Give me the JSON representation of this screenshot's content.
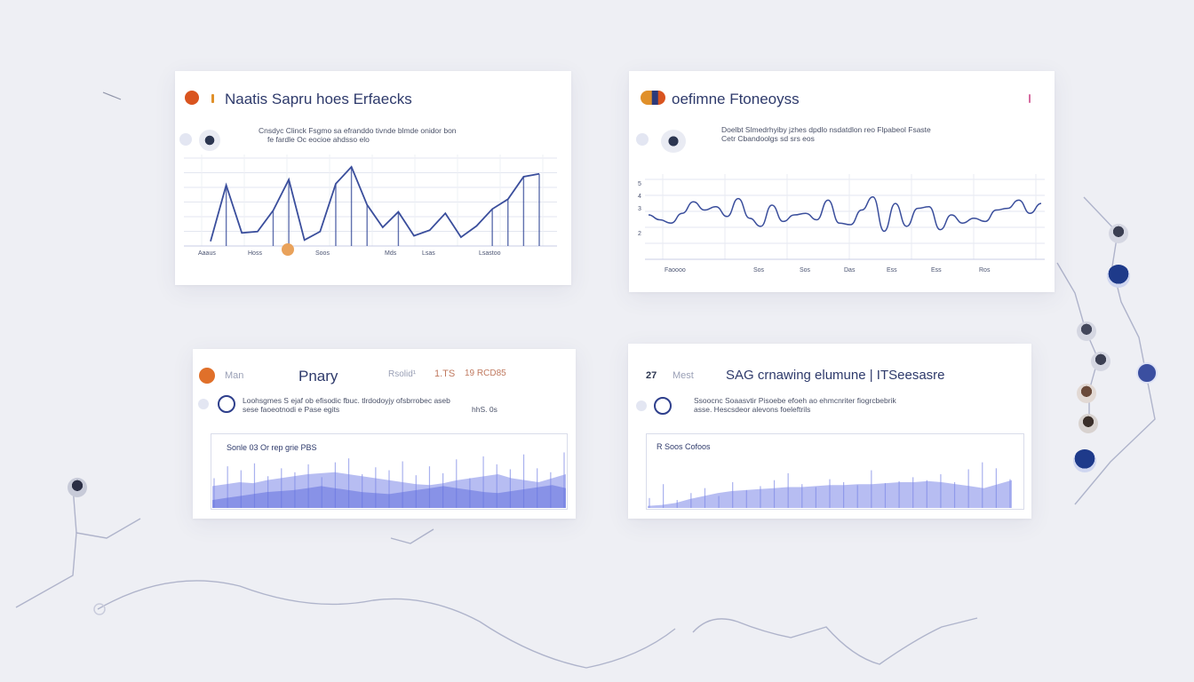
{
  "cards": [
    {
      "title": "Naatis Sapru hoes Erfaecks",
      "subtitle_1": "Cnsdyc Clinck Fsgmo sa efranddo tivnde blmde onidor bon",
      "subtitle_2": "fe fardle Oc eocioe ahdsso elo",
      "x_ticks": [
        "Aaaus",
        "Hoss",
        "Soos",
        "Mds",
        "Lsas",
        "Lsastoo"
      ]
    },
    {
      "title": "oefimne Ftoneoyss",
      "subtitle_1": "Doelbt Slmedrhyiby jzhes dpdlo nsdatdlon reo Flpabeol Fsaste",
      "subtitle_2": "Cetr Cbandoolgs sd srs eos",
      "y_ticks": [
        "5",
        "4",
        "3",
        "2"
      ],
      "x_ticks": [
        "Faoooo",
        "Sos",
        "Sos",
        "Das",
        "Ess",
        "Ess",
        "Ros"
      ]
    },
    {
      "label_left": "Man",
      "title": "Pnary",
      "label_right_1": "Rsolid¹",
      "label_right_2": "1.TS",
      "label_right_3": "19 RCD85",
      "subtitle_1": "Loohsgmes S ejaf ob efisodic fbuc. tlrdodoyjy ofsbrrobec aseb",
      "subtitle_2": "sese faoeotnodi e Pase egits",
      "subtitle_3": "hhS. 0s",
      "panel_label": "Sonle  03  Or rep grie  PBS"
    },
    {
      "label_left_1": "27",
      "label_left_2": "Mest",
      "title": "SAG crnawing elumune  |  ITSeesasre",
      "subtitle_1": "Ssoocnc Soaasvtir Pisoebe efoeh ao ehmcnriter fiogrcbebrik",
      "subtitle_2": "asse. Hescsdeor alevons foeleftrils",
      "panel_label": "R   Soos Cofoos"
    }
  ],
  "chart_data": [
    {
      "type": "line",
      "series": [
        {
          "values": [
            0.2,
            4.2,
            0.8,
            0.9,
            2.4,
            4.6,
            0.3,
            0.9,
            4.3,
            5.5,
            2.8,
            1.2,
            2.3,
            0.6,
            1.0,
            2.2,
            0.5,
            1.3,
            2.5,
            3.2,
            4.8,
            5.0
          ]
        }
      ],
      "x_ticks": [
        "Aaaus",
        "Hoss",
        "Soos",
        "Mds",
        "Lsas",
        "Lsastoo"
      ],
      "grid": true
    },
    {
      "type": "line",
      "series": [
        {
          "values": [
            2.5,
            2.2,
            2.0,
            2.6,
            3.3,
            2.8,
            3.0,
            2.4,
            3.5,
            2.3,
            1.8,
            3.1,
            2.1,
            2.5,
            2.6,
            2.2,
            3.4,
            2.0,
            1.9,
            2.8,
            3.6,
            1.5,
            3.2,
            1.8,
            2.9,
            3.0,
            1.6,
            2.5,
            2.0,
            2.3,
            2.1,
            2.8,
            2.9,
            3.4,
            2.6,
            3.2
          ]
        }
      ],
      "y_ticks": [
        "5",
        "4",
        "3",
        "2"
      ],
      "x_ticks": [
        "Faoooo",
        "Sos",
        "Sos",
        "Das",
        "Ess",
        "Ess",
        "Ros"
      ],
      "grid": true
    },
    {
      "type": "area",
      "series": [
        {
          "values": [
            2.2,
            2.4,
            2.6,
            2.5,
            2.8,
            3.0,
            3.2,
            3.4,
            3.5,
            3.6,
            3.4,
            3.2,
            3.0,
            2.8,
            2.6,
            2.4,
            2.3,
            2.5,
            2.8,
            3.0,
            3.2,
            3.4,
            3.0,
            2.8,
            2.6,
            3.0,
            3.4
          ]
        },
        {
          "values": [
            0.8,
            1.0,
            1.2,
            1.4,
            1.6,
            1.7,
            1.8,
            2.0,
            2.2,
            2.0,
            1.8,
            1.6,
            1.5,
            1.4,
            1.6,
            1.8,
            2.0,
            2.2,
            2.0,
            1.8,
            1.6,
            1.5,
            1.7,
            1.9,
            2.1,
            2.3,
            2.0
          ]
        }
      ],
      "bars": [
        3.0,
        4.2,
        3.8,
        4.5,
        3.2,
        4.0,
        3.6,
        4.4,
        3.1,
        4.6,
        5.0,
        3.4,
        4.1,
        3.8,
        4.7,
        3.3,
        4.2,
        3.5,
        4.9,
        3.0,
        5.2,
        4.4,
        3.9,
        5.4,
        4.0,
        3.6,
        5.6
      ]
    },
    {
      "type": "area",
      "series": [
        {
          "values": [
            0.2,
            0.3,
            0.5,
            0.9,
            1.2,
            1.5,
            1.7,
            1.8,
            1.9,
            2.0,
            2.1,
            2.1,
            2.2,
            2.3,
            2.3,
            2.4,
            2.4,
            2.5,
            2.6,
            2.6,
            2.7,
            2.6,
            2.4,
            2.2,
            2.0,
            2.4,
            2.8
          ]
        }
      ],
      "bars": [
        1.0,
        2.4,
        0.8,
        1.5,
        2.0,
        1.2,
        2.6,
        1.8,
        2.2,
        2.8,
        3.5,
        2.4,
        2.1,
        2.9,
        2.6,
        2.3,
        3.8,
        2.5,
        2.7,
        3.1,
        2.8,
        3.4,
        2.6,
        3.9,
        4.6,
        4.0,
        2.9
      ]
    }
  ],
  "colors": {
    "accent_blue": "#3b52a6",
    "line_blue": "#3a4e9c",
    "area_fill": "#7b87e8",
    "area_light": "#c9cff5",
    "orange": "#d9541f",
    "pink": "#d66ba0",
    "navy_avatar": "#1e3a8a"
  }
}
